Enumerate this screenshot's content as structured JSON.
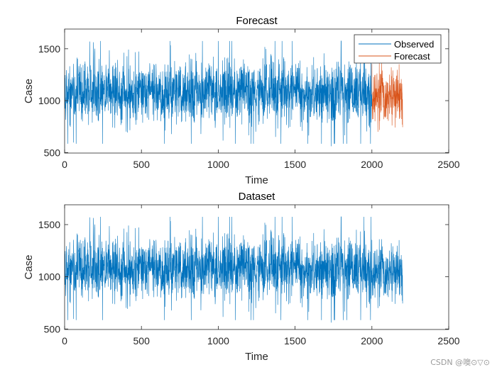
{
  "watermark": "CSDN @噢⊙▽⊙",
  "colors": {
    "observed": "#0072BD",
    "forecast": "#D95319",
    "axis": "#262626"
  },
  "chart_data": [
    {
      "type": "line",
      "title": "Forecast",
      "xlabel": "Time",
      "ylabel": "Case",
      "xlim": [
        0,
        2500
      ],
      "ylim": [
        495,
        1690
      ],
      "xticks": [
        0,
        500,
        1000,
        1500,
        2000,
        2500
      ],
      "yticks": [
        500,
        1000,
        1500
      ],
      "legend": {
        "placement": "top-right",
        "entries": [
          "Observed",
          "Forecast"
        ]
      },
      "series": [
        {
          "name": "Observed",
          "x_range": [
            1,
            2000
          ],
          "mean": 1080,
          "spread": 150,
          "min": 500,
          "max": 1680
        },
        {
          "name": "Forecast",
          "x_range": [
            2001,
            2200
          ],
          "mean": 1050,
          "spread": 140,
          "min": 700,
          "max": 1360
        }
      ]
    },
    {
      "type": "line",
      "title": "Dataset",
      "xlabel": "Time",
      "ylabel": "Case",
      "xlim": [
        0,
        2500
      ],
      "ylim": [
        495,
        1690
      ],
      "xticks": [
        0,
        500,
        1000,
        1500,
        2000,
        2500
      ],
      "yticks": [
        500,
        1000,
        1500
      ],
      "series": [
        {
          "x_range": [
            1,
            2200
          ],
          "mean": 1080,
          "spread": 150,
          "min": 500,
          "max": 1680
        }
      ]
    }
  ]
}
